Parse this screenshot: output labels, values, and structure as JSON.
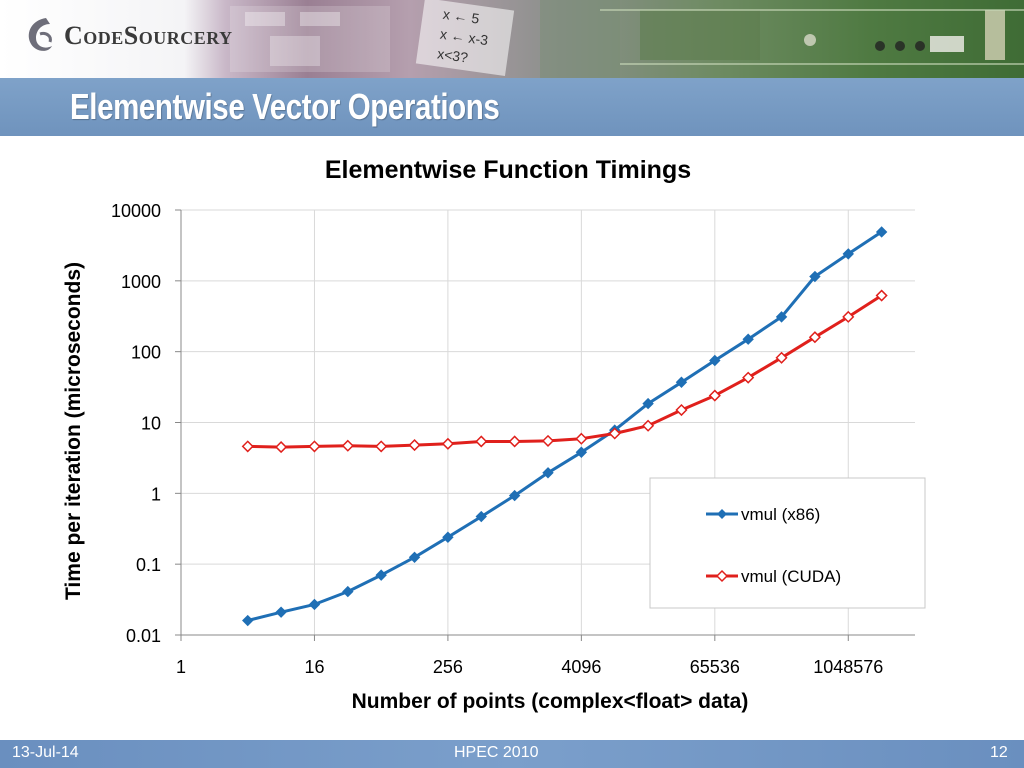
{
  "header": {
    "logo_text": "CodeSourcery",
    "slide_title": "Elementwise Vector Operations"
  },
  "footer": {
    "date": "13-Jul-14",
    "event": "HPEC 2010",
    "page": "12"
  },
  "colors": {
    "x86_series": "#1f6fb5",
    "cuda_series": "#e0201c",
    "title_bar": "#7397c1",
    "footer_bar": "#6f93c2"
  },
  "chart_data": {
    "type": "line",
    "title": "Elementwise Function Timings",
    "xlabel": "Number of points (complex<float> data)",
    "ylabel": "Time per iteration (microseconds)",
    "x_scale": "log2",
    "y_scale": "log10",
    "xlim": [
      1,
      4194304
    ],
    "ylim": [
      0.01,
      10000
    ],
    "x_tick_labels": [
      "1",
      "16",
      "256",
      "4096",
      "65536",
      "1048576"
    ],
    "x_tick_values": [
      1,
      16,
      256,
      4096,
      65536,
      1048576
    ],
    "y_tick_labels": [
      "0.01",
      "0.1",
      "1",
      "10",
      "100",
      "1000",
      "10000"
    ],
    "y_tick_values": [
      0.01,
      0.1,
      1,
      10,
      100,
      1000,
      10000
    ],
    "grid": "vertical",
    "legend_position": "bottom-right",
    "x": [
      4,
      8,
      16,
      32,
      64,
      128,
      256,
      512,
      1024,
      2048,
      4096,
      8192,
      16384,
      32768,
      65536,
      131072,
      262144,
      524288,
      1048576,
      2097152
    ],
    "series": [
      {
        "name": "vmul (x86)",
        "marker": "filled-diamond",
        "values": [
          0.016,
          0.021,
          0.027,
          0.041,
          0.07,
          0.125,
          0.24,
          0.47,
          0.93,
          1.95,
          3.8,
          7.8,
          18.5,
          37,
          75,
          150,
          310,
          1150,
          2400,
          4900
        ]
      },
      {
        "name": "vmul (CUDA)",
        "marker": "hollow-diamond",
        "values": [
          4.6,
          4.5,
          4.6,
          4.7,
          4.6,
          4.8,
          5.0,
          5.4,
          5.4,
          5.5,
          5.9,
          7.0,
          9.0,
          15,
          24,
          43,
          82,
          160,
          310,
          620
        ]
      }
    ]
  }
}
